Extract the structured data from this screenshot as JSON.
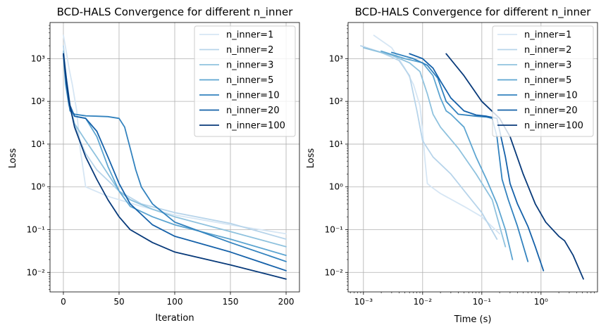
{
  "colors": {
    "n_inner=1": "#d6e6f4",
    "n_inner=2": "#b7d4ea",
    "n_inner=3": "#8fc2de",
    "n_inner=5": "#5da5d1",
    "n_inner=10": "#3282be",
    "n_inner=20": "#1561a9",
    "n_inner=100": "#083a7a"
  },
  "chart_data": [
    {
      "type": "line",
      "title": "BCD-HALS Convergence for different n_inner",
      "xlabel": "Iteration",
      "ylabel": "Loss",
      "xscale": "linear",
      "yscale": "log",
      "xlim": [
        -12,
        212
      ],
      "ylim": [
        0.0035,
        7000
      ],
      "xticks": [
        0,
        50,
        100,
        150,
        200
      ],
      "xtick_labels": [
        "0",
        "50",
        "100",
        "150",
        "200"
      ],
      "yticks": [
        0.01,
        0.1,
        1,
        10,
        100,
        1000
      ],
      "ytick_labels": [
        "10⁻²",
        "10⁻¹",
        "10⁰",
        "10¹",
        "10²",
        "10³"
      ],
      "grid": true,
      "legend": "top-right",
      "series": [
        {
          "name": "n_inner=1",
          "x": [
            0,
            2,
            5,
            8,
            10,
            12,
            15,
            20,
            40,
            70,
            100,
            150,
            200
          ],
          "y": [
            3500,
            1800,
            600,
            250,
            120,
            60,
            8,
            1.0,
            0.6,
            0.35,
            0.22,
            0.13,
            0.08
          ]
        },
        {
          "name": "n_inner=2",
          "x": [
            0,
            2,
            5,
            10,
            15,
            20,
            30,
            50,
            70,
            100,
            150,
            200
          ],
          "y": [
            2000,
            500,
            100,
            30,
            12,
            6,
            2.5,
            0.8,
            0.4,
            0.25,
            0.14,
            0.06
          ]
        },
        {
          "name": "n_inner=3",
          "x": [
            0,
            2,
            5,
            10,
            20,
            30,
            40,
            50,
            60,
            80,
            100,
            150,
            200
          ],
          "y": [
            1500,
            300,
            80,
            30,
            12,
            5,
            2,
            0.8,
            0.5,
            0.3,
            0.2,
            0.09,
            0.04
          ]
        },
        {
          "name": "n_inner=5",
          "x": [
            0,
            2,
            5,
            10,
            20,
            30,
            40,
            50,
            60,
            80,
            100,
            150,
            200
          ],
          "y": [
            1200,
            250,
            80,
            45,
            40,
            15,
            3,
            0.8,
            0.35,
            0.2,
            0.13,
            0.06,
            0.025
          ]
        },
        {
          "name": "n_inner=10",
          "x": [
            0,
            3,
            6,
            10,
            20,
            30,
            40,
            50,
            55,
            60,
            65,
            70,
            80,
            100,
            150,
            200
          ],
          "y": [
            1200,
            200,
            60,
            50,
            46,
            45,
            44,
            40,
            25,
            8,
            2.5,
            1.0,
            0.4,
            0.15,
            0.05,
            0.018
          ]
        },
        {
          "name": "n_inner=20",
          "x": [
            0,
            3,
            6,
            10,
            20,
            30,
            40,
            50,
            60,
            80,
            100,
            150,
            200
          ],
          "y": [
            1300,
            300,
            80,
            45,
            40,
            20,
            5,
            1.2,
            0.4,
            0.13,
            0.07,
            0.03,
            0.011
          ]
        },
        {
          "name": "n_inner=100",
          "x": [
            0,
            2,
            5,
            10,
            20,
            30,
            40,
            50,
            60,
            80,
            100,
            150,
            200
          ],
          "y": [
            1300,
            400,
            100,
            25,
            5,
            1.5,
            0.5,
            0.2,
            0.1,
            0.05,
            0.03,
            0.015,
            0.007
          ]
        }
      ]
    },
    {
      "type": "line",
      "title": "BCD-HALS Convergence for different n_inner",
      "xlabel": "Time (s)",
      "ylabel": "Loss",
      "xscale": "log",
      "yscale": "log",
      "xlim": [
        0.00055,
        9
      ],
      "ylim": [
        0.0035,
        7000
      ],
      "xticks": [
        0.001,
        0.01,
        0.1,
        1
      ],
      "xtick_labels": [
        "10⁻³",
        "10⁻²",
        "10⁻¹",
        "10⁰"
      ],
      "yticks": [
        0.01,
        0.1,
        1,
        10,
        100,
        1000
      ],
      "ytick_labels": [
        "10⁻²",
        "10⁻¹",
        "10⁰",
        "10¹",
        "10²",
        "10³"
      ],
      "grid": true,
      "legend": "top-right",
      "series": [
        {
          "name": "n_inner=1",
          "x": [
            0.0015,
            0.003,
            0.005,
            0.007,
            0.009,
            0.01,
            0.011,
            0.012,
            0.014,
            0.02,
            0.05,
            0.1,
            0.2
          ],
          "y": [
            3500,
            1800,
            600,
            250,
            80,
            20,
            4,
            1.2,
            1.0,
            0.7,
            0.35,
            0.2,
            0.08
          ]
        },
        {
          "name": "n_inner=2",
          "x": [
            0.0009,
            0.002,
            0.004,
            0.006,
            0.008,
            0.01,
            0.015,
            0.03,
            0.06,
            0.1,
            0.18
          ],
          "y": [
            2000,
            1400,
            900,
            400,
            60,
            12,
            5,
            2,
            0.6,
            0.25,
            0.06
          ]
        },
        {
          "name": "n_inner=3",
          "x": [
            0.001,
            0.003,
            0.006,
            0.009,
            0.012,
            0.015,
            0.02,
            0.04,
            0.08,
            0.15,
            0.25
          ],
          "y": [
            1800,
            1200,
            800,
            500,
            150,
            50,
            25,
            8,
            2,
            0.5,
            0.04
          ]
        },
        {
          "name": "n_inner=5",
          "x": [
            0.002,
            0.005,
            0.01,
            0.015,
            0.02,
            0.025,
            0.03,
            0.05,
            0.08,
            0.12,
            0.18,
            0.25,
            0.33
          ],
          "y": [
            1500,
            1000,
            800,
            400,
            120,
            60,
            50,
            25,
            5,
            1.5,
            0.4,
            0.1,
            0.02
          ]
        },
        {
          "name": "n_inner=10",
          "x": [
            0.003,
            0.007,
            0.012,
            0.018,
            0.025,
            0.04,
            0.08,
            0.12,
            0.15,
            0.18,
            0.22,
            0.28,
            0.4,
            0.6
          ],
          "y": [
            1400,
            1000,
            700,
            350,
            100,
            50,
            45,
            43,
            40,
            15,
            1.5,
            0.5,
            0.12,
            0.018
          ]
        },
        {
          "name": "n_inner=20",
          "x": [
            0.006,
            0.01,
            0.015,
            0.02,
            0.03,
            0.05,
            0.08,
            0.12,
            0.18,
            0.25,
            0.3,
            0.4,
            0.6,
            0.8,
            1.1
          ],
          "y": [
            1300,
            1000,
            600,
            300,
            120,
            60,
            48,
            45,
            40,
            5,
            1.2,
            0.4,
            0.12,
            0.04,
            0.011
          ]
        },
        {
          "name": "n_inner=100",
          "x": [
            0.025,
            0.05,
            0.1,
            0.2,
            0.3,
            0.5,
            0.8,
            1.2,
            2,
            2.5,
            3.5,
            5.2
          ],
          "y": [
            1300,
            400,
            100,
            40,
            15,
            2,
            0.4,
            0.15,
            0.07,
            0.055,
            0.025,
            0.007
          ]
        }
      ]
    }
  ]
}
